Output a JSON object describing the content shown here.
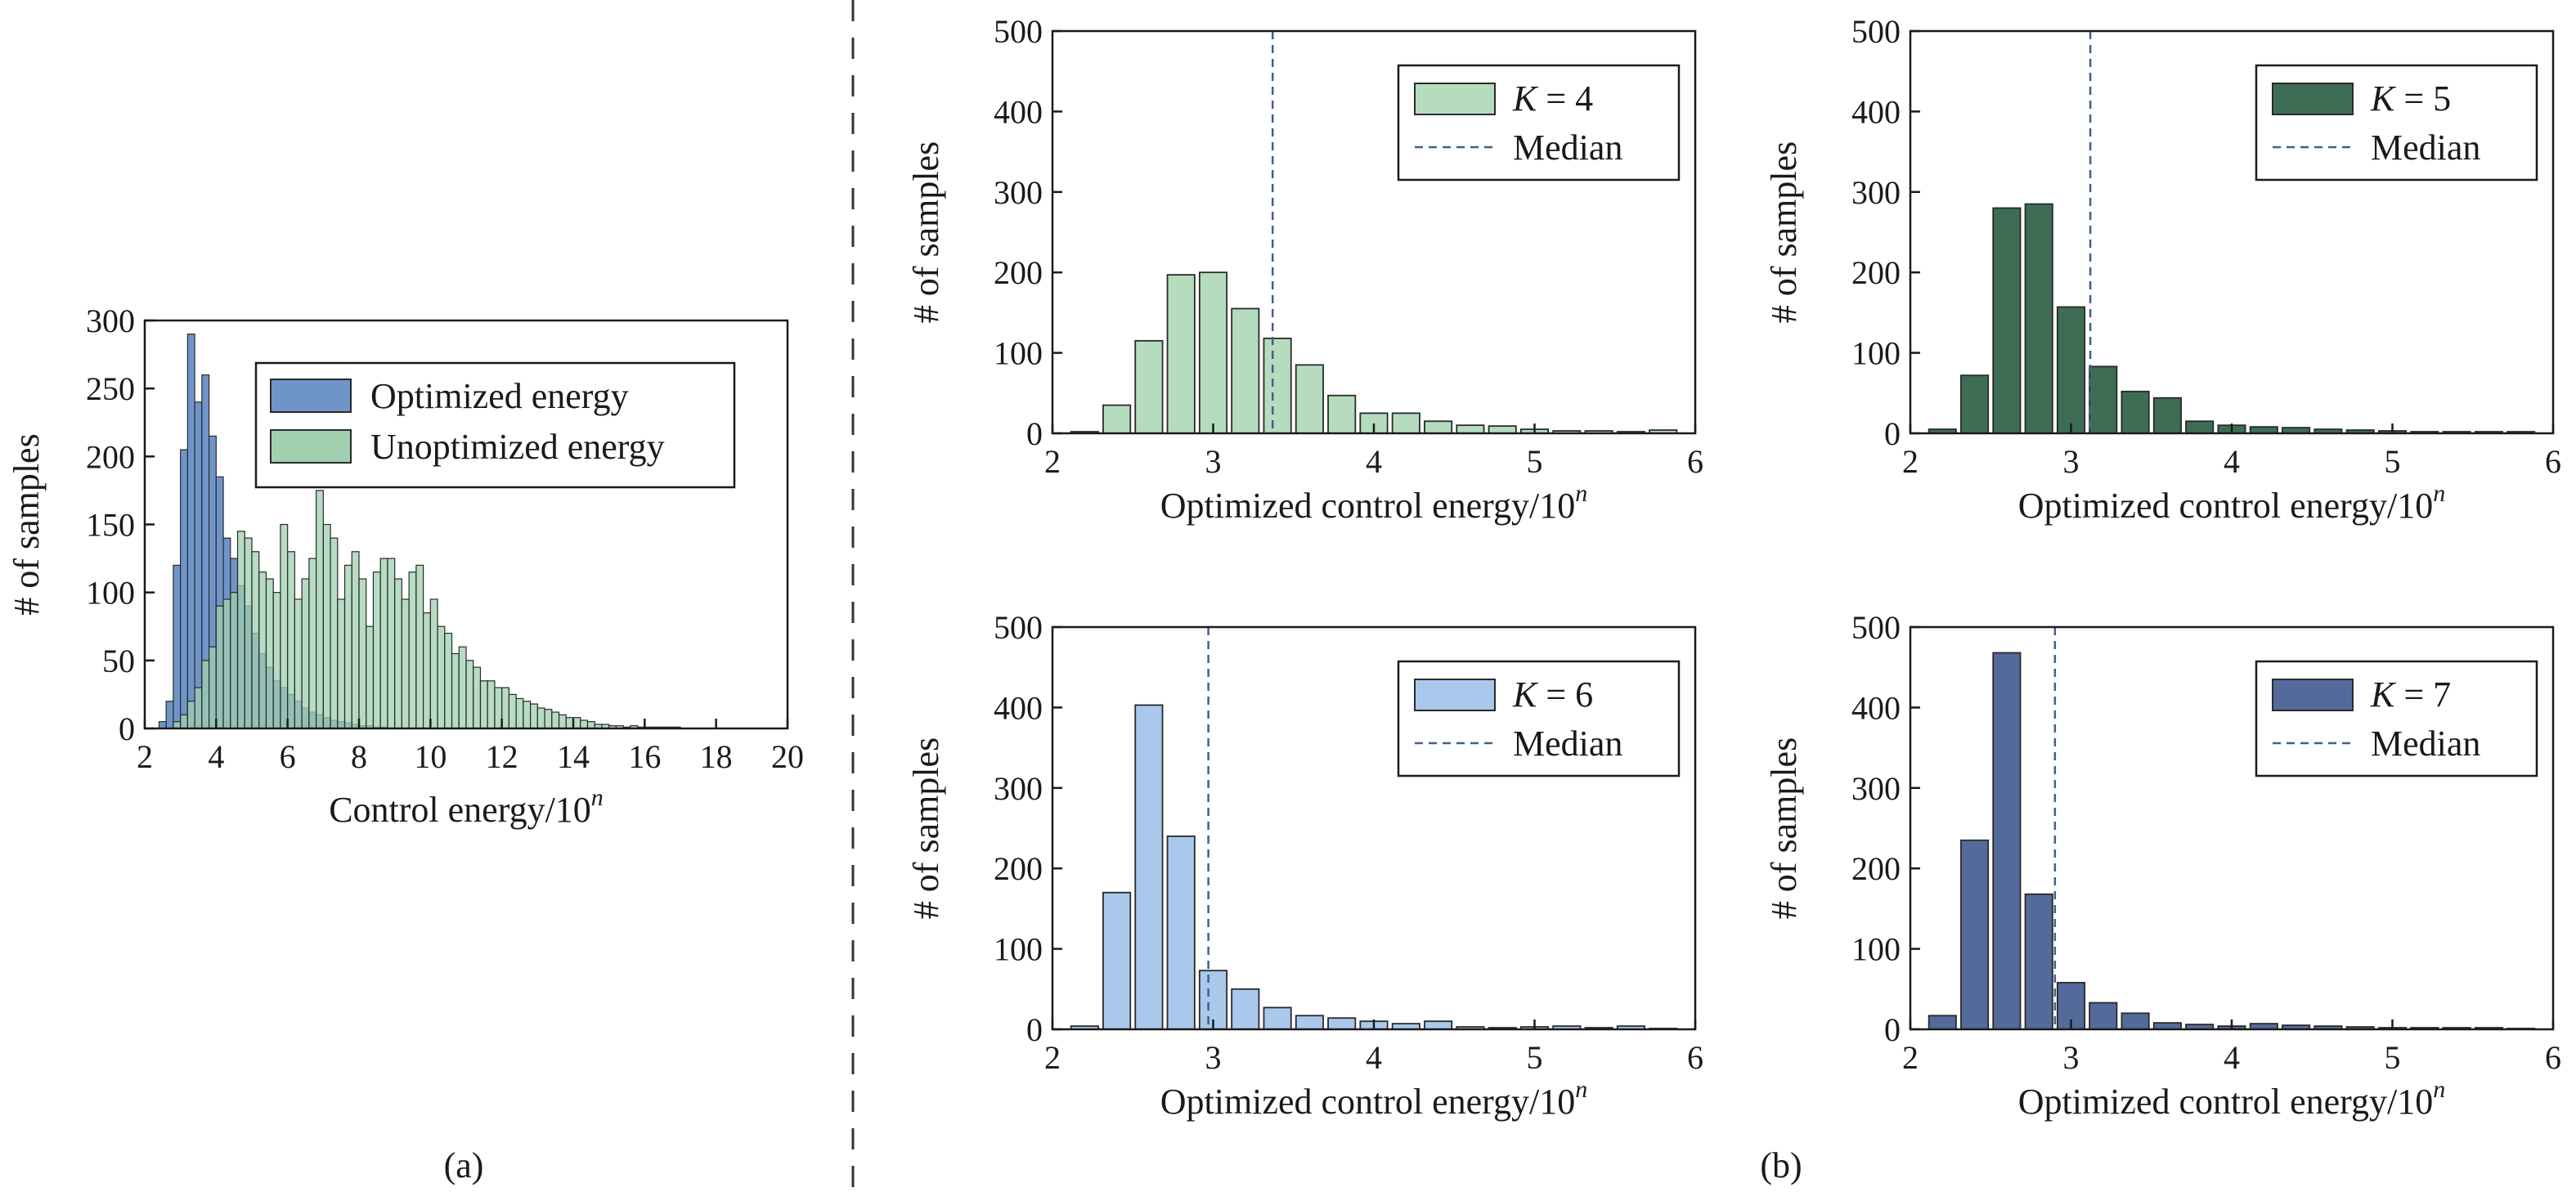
{
  "figure": {
    "panel_a_label": "(a)",
    "panel_b_label": "(b)",
    "colors": {
      "optimized": "#6f95c8",
      "unoptimized": "#9fd0b0",
      "k4": "#b6dcbe",
      "k5": "#3d6e55",
      "k6": "#a9c8ec",
      "k7": "#546a9b",
      "median_line": "#3f5f8f",
      "edge": "#2a2a2a",
      "divider": "#333333"
    }
  },
  "chart_data": [
    {
      "id": "a",
      "type": "bar",
      "title": "",
      "xlabel": "Control energy/10",
      "xlabel_sup": "n",
      "ylabel": "# of samples",
      "xlim": [
        2,
        20
      ],
      "ylim": [
        0,
        300
      ],
      "xticks": [
        "2",
        "4",
        "6",
        "8",
        "10",
        "12",
        "14",
        "16",
        "18",
        "20"
      ],
      "yticks": [
        "0",
        "50",
        "100",
        "150",
        "200",
        "250",
        "300"
      ],
      "bin_width": 0.2,
      "legend_position": "top-right",
      "series": [
        {
          "name": "Optimized energy",
          "bin_start": 2.4,
          "values": [
            5,
            20,
            120,
            205,
            290,
            240,
            260,
            215,
            185,
            140,
            125,
            105,
            90,
            70,
            55,
            45,
            35,
            30,
            25,
            20,
            15,
            12,
            10,
            8,
            6,
            5,
            4,
            3,
            2,
            2,
            1,
            1
          ]
        },
        {
          "name": "Unoptimized energy",
          "bin_start": 2.8,
          "values": [
            5,
            10,
            20,
            30,
            50,
            60,
            90,
            95,
            100,
            145,
            140,
            130,
            115,
            110,
            100,
            150,
            130,
            95,
            110,
            125,
            175,
            150,
            140,
            95,
            120,
            130,
            110,
            75,
            115,
            125,
            125,
            110,
            95,
            115,
            120,
            85,
            95,
            75,
            70,
            55,
            60,
            50,
            45,
            35,
            35,
            30,
            30,
            25,
            22,
            20,
            18,
            15,
            14,
            12,
            10,
            8,
            8,
            6,
            5,
            3,
            3,
            2,
            2,
            1,
            2,
            1,
            1,
            1,
            1,
            1,
            1
          ]
        }
      ]
    },
    {
      "id": "b1",
      "type": "bar",
      "title": "",
      "xlabel": "Optimized control energy/10",
      "xlabel_sup": "n",
      "ylabel": "# of samples",
      "xlim": [
        2,
        6
      ],
      "ylim": [
        0,
        500
      ],
      "xticks": [
        "2",
        "3",
        "4",
        "5",
        "6"
      ],
      "yticks": [
        "0",
        "100",
        "200",
        "300",
        "400",
        "500"
      ],
      "bin_width": 0.2,
      "bin_start": 2.1,
      "series": [
        {
          "name_prefix": "K",
          "name_value": "= 4",
          "values": [
            2,
            35,
            115,
            197,
            200,
            155,
            118,
            85,
            47,
            25,
            25,
            15,
            10,
            9,
            5,
            3,
            3,
            2,
            4
          ]
        }
      ],
      "median": 3.37,
      "median_label": "Median",
      "legend_position": "top-right"
    },
    {
      "id": "b2",
      "type": "bar",
      "title": "",
      "xlabel": "Optimized control energy/10",
      "xlabel_sup": "n",
      "ylabel": "# of samples",
      "xlim": [
        2,
        6
      ],
      "ylim": [
        0,
        500
      ],
      "xticks": [
        "2",
        "3",
        "4",
        "5",
        "6"
      ],
      "yticks": [
        "0",
        "100",
        "200",
        "300",
        "400",
        "500"
      ],
      "bin_width": 0.2,
      "bin_start": 2.1,
      "series": [
        {
          "name_prefix": "K",
          "name_value": "= 5",
          "values": [
            5,
            72,
            280,
            285,
            157,
            83,
            52,
            44,
            15,
            10,
            8,
            7,
            5,
            4,
            3,
            2,
            2,
            2,
            2
          ]
        }
      ],
      "median": 3.12,
      "median_label": "Median",
      "legend_position": "top-right"
    },
    {
      "id": "b3",
      "type": "bar",
      "title": "",
      "xlabel": "Optimized control energy/10",
      "xlabel_sup": "n",
      "ylabel": "# of samples",
      "xlim": [
        2,
        6
      ],
      "ylim": [
        0,
        500
      ],
      "xticks": [
        "2",
        "3",
        "4",
        "5",
        "6"
      ],
      "yticks": [
        "0",
        "100",
        "200",
        "300",
        "400",
        "500"
      ],
      "bin_width": 0.2,
      "bin_start": 2.1,
      "series": [
        {
          "name_prefix": "K",
          "name_value": "= 6",
          "values": [
            4,
            170,
            403,
            240,
            73,
            50,
            27,
            17,
            14,
            10,
            7,
            10,
            3,
            2,
            3,
            4,
            2,
            4,
            1
          ]
        }
      ],
      "median": 2.97,
      "median_label": "Median",
      "legend_position": "top-right"
    },
    {
      "id": "b4",
      "type": "bar",
      "title": "",
      "xlabel": "Optimized control energy/10",
      "xlabel_sup": "n",
      "ylabel": "# of samples",
      "xlim": [
        2,
        6
      ],
      "ylim": [
        0,
        500
      ],
      "xticks": [
        "2",
        "3",
        "4",
        "5",
        "6"
      ],
      "yticks": [
        "0",
        "100",
        "200",
        "300",
        "400",
        "500"
      ],
      "bin_width": 0.2,
      "bin_start": 2.1,
      "series": [
        {
          "name_prefix": "K",
          "name_value": "= 7",
          "values": [
            17,
            235,
            468,
            168,
            58,
            33,
            20,
            8,
            6,
            4,
            7,
            5,
            4,
            3,
            2,
            2,
            2,
            2,
            1
          ]
        }
      ],
      "median": 2.9,
      "median_label": "Median",
      "legend_position": "top-right"
    }
  ]
}
